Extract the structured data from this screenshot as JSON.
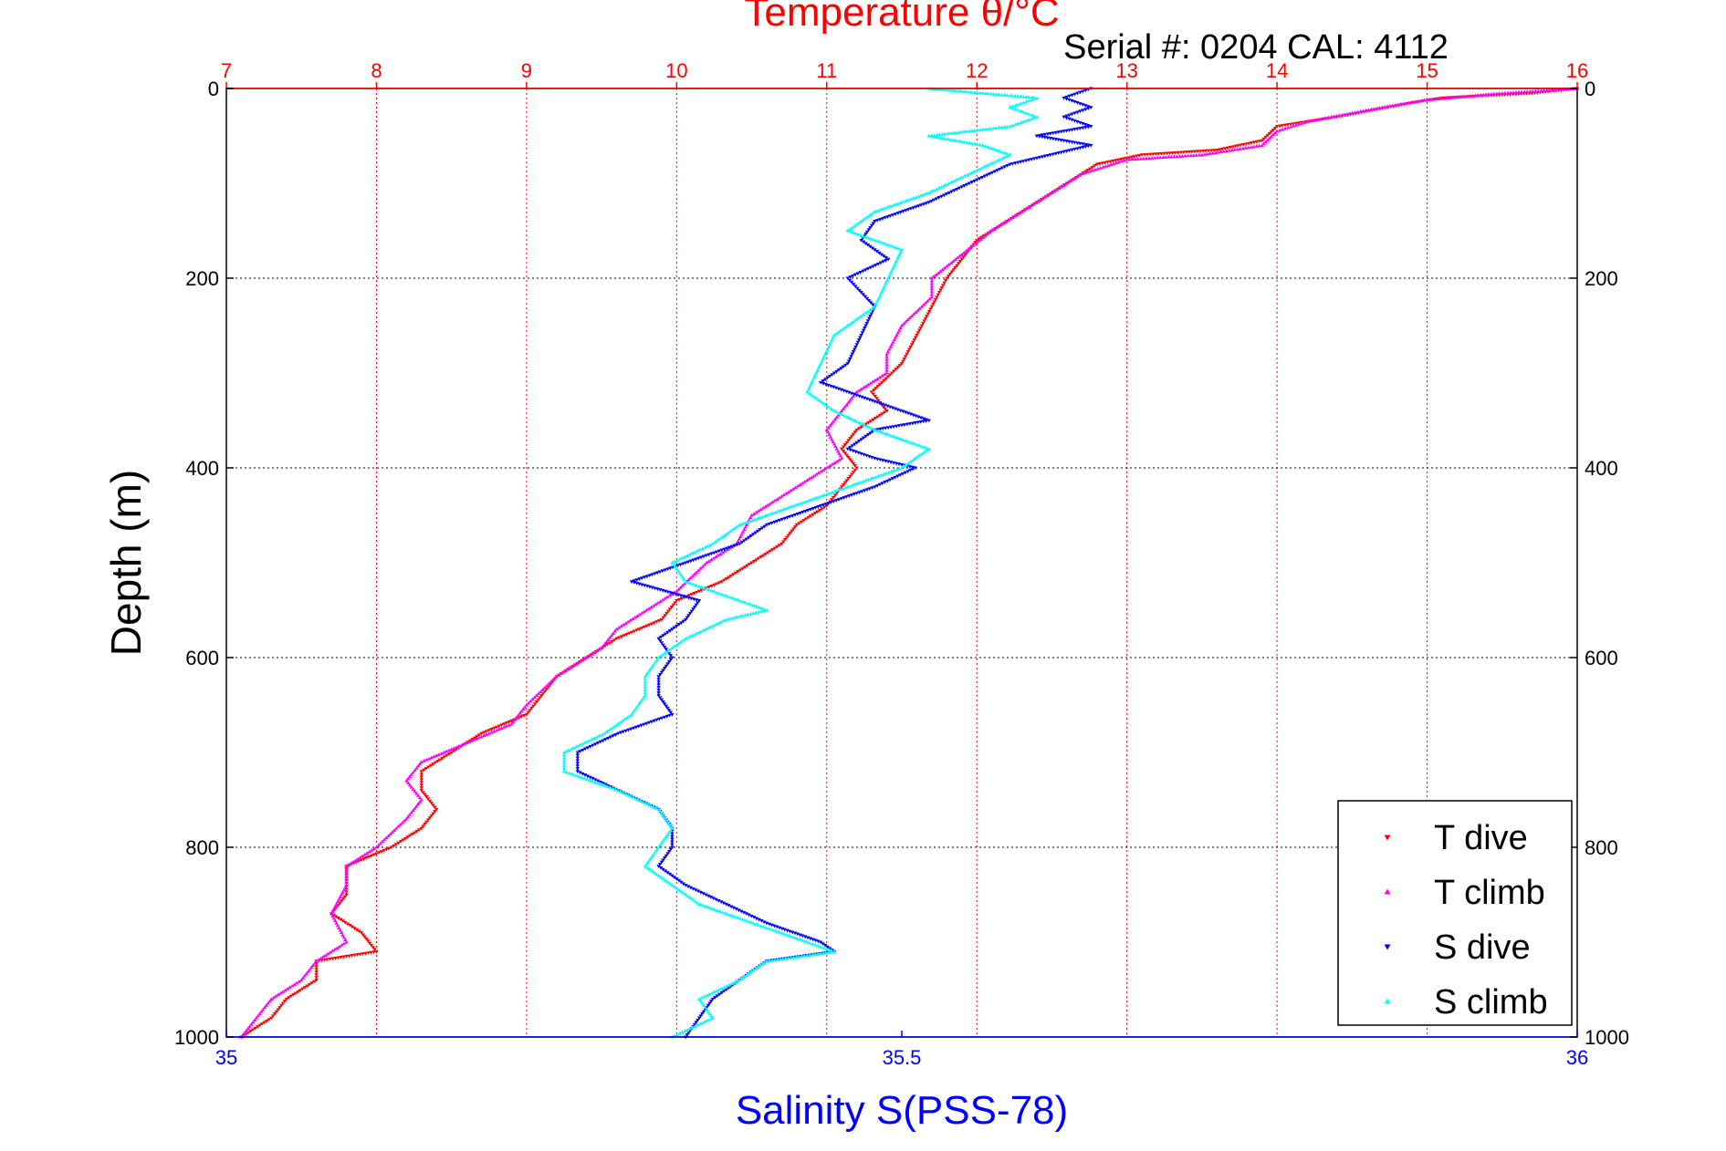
{
  "chart_data": {
    "type": "scatter",
    "title_top": "Temperature θ/°C",
    "serial_text": "Serial #: 0204  CAL: 4112",
    "ylabel": "Depth (m)",
    "xlabel_bottom": "Salinity S(PSS-78)",
    "y_axis": {
      "range": [
        0,
        1000
      ],
      "reversed": true,
      "ticks": [
        0,
        200,
        400,
        600,
        800,
        1000
      ]
    },
    "temperature_axis": {
      "range": [
        7,
        16
      ],
      "ticks": [
        7,
        8,
        9,
        10,
        11,
        12,
        13,
        14,
        15,
        16
      ]
    },
    "salinity_axis": {
      "range": [
        35,
        36
      ],
      "ticks": [
        35,
        35.5,
        36
      ],
      "tick_labels": [
        "35",
        "35.5",
        "36"
      ]
    },
    "grid": true,
    "legend_position": "bottom-right",
    "colors": {
      "temperature_axis": "#ff0000",
      "salinity_axis": "#0000ff",
      "t_dive": "#ff0000",
      "t_climb": "#ff00ff",
      "s_dive": "#0000ff",
      "s_climb": "#00ffff"
    },
    "series": [
      {
        "name": "T dive",
        "axis": "temperature",
        "marker": "triangle-down",
        "color": "#ff0000",
        "points": [
          [
            16,
            0
          ],
          [
            15.7,
            5
          ],
          [
            15.1,
            10
          ],
          [
            14.9,
            15
          ],
          [
            14.4,
            30
          ],
          [
            14.0,
            40
          ],
          [
            13.9,
            55
          ],
          [
            13.6,
            65
          ],
          [
            13.1,
            70
          ],
          [
            12.8,
            80
          ],
          [
            12.6,
            100
          ],
          [
            12.4,
            120
          ],
          [
            12.2,
            140
          ],
          [
            12.0,
            160
          ],
          [
            11.9,
            180
          ],
          [
            11.8,
            200
          ],
          [
            11.7,
            230
          ],
          [
            11.6,
            260
          ],
          [
            11.5,
            290
          ],
          [
            11.3,
            320
          ],
          [
            11.4,
            340
          ],
          [
            11.2,
            360
          ],
          [
            11.1,
            380
          ],
          [
            11.2,
            400
          ],
          [
            11.1,
            420
          ],
          [
            11.0,
            440
          ],
          [
            10.8,
            460
          ],
          [
            10.7,
            480
          ],
          [
            10.5,
            500
          ],
          [
            10.3,
            520
          ],
          [
            10.0,
            540
          ],
          [
            9.9,
            560
          ],
          [
            9.6,
            580
          ],
          [
            9.4,
            600
          ],
          [
            9.2,
            620
          ],
          [
            9.1,
            640
          ],
          [
            9.0,
            660
          ],
          [
            8.7,
            680
          ],
          [
            8.5,
            700
          ],
          [
            8.3,
            720
          ],
          [
            8.3,
            740
          ],
          [
            8.4,
            760
          ],
          [
            8.3,
            780
          ],
          [
            8.1,
            800
          ],
          [
            7.8,
            820
          ],
          [
            7.8,
            850
          ],
          [
            7.7,
            870
          ],
          [
            7.9,
            890
          ],
          [
            8.0,
            910
          ],
          [
            7.6,
            920
          ],
          [
            7.6,
            940
          ],
          [
            7.4,
            960
          ],
          [
            7.3,
            980
          ],
          [
            7.1,
            1000
          ]
        ]
      },
      {
        "name": "T climb",
        "axis": "temperature",
        "marker": "triangle-up",
        "color": "#ff00ff",
        "points": [
          [
            16,
            0
          ],
          [
            15.5,
            5
          ],
          [
            15.0,
            12
          ],
          [
            14.7,
            20
          ],
          [
            14.2,
            35
          ],
          [
            14.0,
            45
          ],
          [
            13.9,
            60
          ],
          [
            13.5,
            70
          ],
          [
            13.0,
            75
          ],
          [
            12.7,
            90
          ],
          [
            12.5,
            110
          ],
          [
            12.3,
            130
          ],
          [
            12.1,
            150
          ],
          [
            11.9,
            175
          ],
          [
            11.7,
            200
          ],
          [
            11.7,
            220
          ],
          [
            11.5,
            250
          ],
          [
            11.4,
            280
          ],
          [
            11.4,
            300
          ],
          [
            11.2,
            320
          ],
          [
            11.1,
            340
          ],
          [
            11.0,
            360
          ],
          [
            11.1,
            390
          ],
          [
            10.9,
            410
          ],
          [
            10.7,
            430
          ],
          [
            10.5,
            450
          ],
          [
            10.4,
            480
          ],
          [
            10.2,
            500
          ],
          [
            10.0,
            530
          ],
          [
            9.8,
            550
          ],
          [
            9.6,
            570
          ],
          [
            9.5,
            590
          ],
          [
            9.2,
            620
          ],
          [
            9.0,
            650
          ],
          [
            8.9,
            670
          ],
          [
            8.6,
            690
          ],
          [
            8.3,
            710
          ],
          [
            8.2,
            730
          ],
          [
            8.3,
            750
          ],
          [
            8.2,
            770
          ],
          [
            8.0,
            800
          ],
          [
            7.8,
            820
          ],
          [
            7.8,
            840
          ],
          [
            7.7,
            870
          ],
          [
            7.8,
            900
          ],
          [
            7.6,
            920
          ],
          [
            7.5,
            940
          ],
          [
            7.3,
            960
          ],
          [
            7.2,
            980
          ],
          [
            7.1,
            1000
          ]
        ]
      },
      {
        "name": "S dive",
        "axis": "salinity",
        "marker": "triangle-down",
        "color": "#0000ff",
        "points": [
          [
            35.64,
            0
          ],
          [
            35.62,
            10
          ],
          [
            35.64,
            20
          ],
          [
            35.62,
            30
          ],
          [
            35.64,
            40
          ],
          [
            35.6,
            50
          ],
          [
            35.64,
            60
          ],
          [
            35.58,
            80
          ],
          [
            35.55,
            100
          ],
          [
            35.52,
            120
          ],
          [
            35.48,
            140
          ],
          [
            35.47,
            160
          ],
          [
            35.49,
            180
          ],
          [
            35.46,
            200
          ],
          [
            35.48,
            230
          ],
          [
            35.47,
            260
          ],
          [
            35.46,
            290
          ],
          [
            35.44,
            310
          ],
          [
            35.48,
            330
          ],
          [
            35.52,
            350
          ],
          [
            35.48,
            360
          ],
          [
            35.46,
            380
          ],
          [
            35.48,
            390
          ],
          [
            35.51,
            400
          ],
          [
            35.48,
            420
          ],
          [
            35.44,
            440
          ],
          [
            35.4,
            460
          ],
          [
            35.38,
            480
          ],
          [
            35.34,
            500
          ],
          [
            35.3,
            520
          ],
          [
            35.35,
            540
          ],
          [
            35.34,
            560
          ],
          [
            35.32,
            580
          ],
          [
            35.33,
            600
          ],
          [
            35.32,
            620
          ],
          [
            35.32,
            640
          ],
          [
            35.33,
            660
          ],
          [
            35.29,
            680
          ],
          [
            35.26,
            700
          ],
          [
            35.26,
            720
          ],
          [
            35.29,
            740
          ],
          [
            35.32,
            760
          ],
          [
            35.33,
            780
          ],
          [
            35.33,
            800
          ],
          [
            35.32,
            820
          ],
          [
            35.34,
            840
          ],
          [
            35.37,
            860
          ],
          [
            35.4,
            880
          ],
          [
            35.44,
            900
          ],
          [
            35.45,
            910
          ],
          [
            35.4,
            920
          ],
          [
            35.38,
            940
          ],
          [
            35.36,
            960
          ],
          [
            35.35,
            980
          ],
          [
            35.34,
            1000
          ]
        ]
      },
      {
        "name": "S climb",
        "axis": "salinity",
        "marker": "triangle-up",
        "color": "#00ffff",
        "points": [
          [
            35.52,
            0
          ],
          [
            35.6,
            10
          ],
          [
            35.58,
            20
          ],
          [
            35.6,
            30
          ],
          [
            35.58,
            40
          ],
          [
            35.52,
            50
          ],
          [
            35.56,
            60
          ],
          [
            35.58,
            70
          ],
          [
            35.55,
            90
          ],
          [
            35.52,
            110
          ],
          [
            35.48,
            130
          ],
          [
            35.46,
            150
          ],
          [
            35.5,
            170
          ],
          [
            35.49,
            200
          ],
          [
            35.48,
            230
          ],
          [
            35.45,
            260
          ],
          [
            35.44,
            290
          ],
          [
            35.43,
            320
          ],
          [
            35.45,
            340
          ],
          [
            35.48,
            360
          ],
          [
            35.52,
            380
          ],
          [
            35.5,
            400
          ],
          [
            35.46,
            420
          ],
          [
            35.42,
            440
          ],
          [
            35.38,
            460
          ],
          [
            35.36,
            480
          ],
          [
            35.33,
            500
          ],
          [
            35.34,
            520
          ],
          [
            35.4,
            550
          ],
          [
            35.37,
            560
          ],
          [
            35.34,
            580
          ],
          [
            35.32,
            600
          ],
          [
            35.31,
            620
          ],
          [
            35.31,
            640
          ],
          [
            35.3,
            660
          ],
          [
            35.28,
            680
          ],
          [
            35.25,
            700
          ],
          [
            35.25,
            720
          ],
          [
            35.29,
            740
          ],
          [
            35.32,
            760
          ],
          [
            35.33,
            780
          ],
          [
            35.32,
            800
          ],
          [
            35.31,
            820
          ],
          [
            35.33,
            840
          ],
          [
            35.35,
            860
          ],
          [
            35.39,
            880
          ],
          [
            35.43,
            900
          ],
          [
            35.45,
            910
          ],
          [
            35.4,
            920
          ],
          [
            35.38,
            940
          ],
          [
            35.35,
            960
          ],
          [
            35.36,
            980
          ],
          [
            35.33,
            1000
          ]
        ]
      }
    ]
  }
}
